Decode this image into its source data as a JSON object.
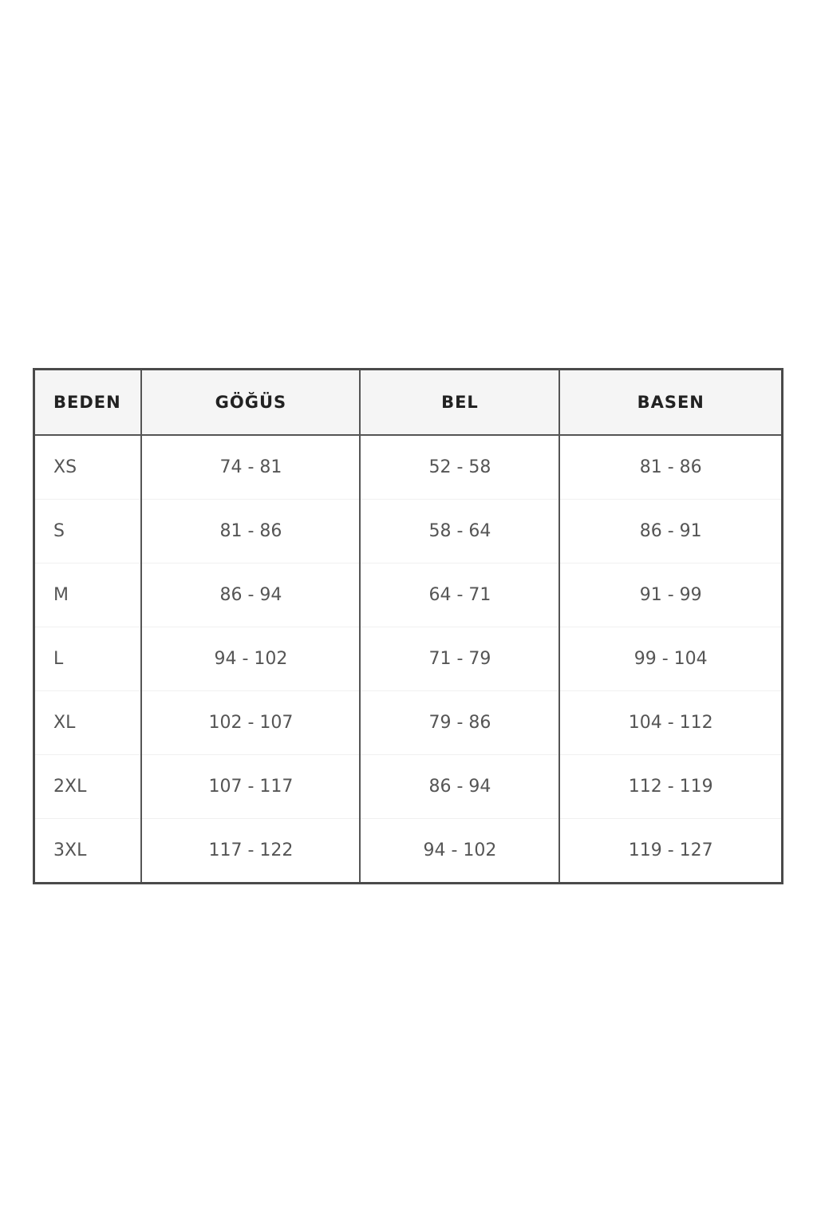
{
  "size_table": {
    "headers": [
      "BEDEN",
      "GÖĞÜS",
      "BEL",
      "BASEN"
    ],
    "rows": [
      [
        "XS",
        "74 - 81",
        "52 - 58",
        "81 - 86"
      ],
      [
        "S",
        "81 - 86",
        "58 - 64",
        "86 - 91"
      ],
      [
        "M",
        "86 - 94",
        "64 - 71",
        "91 - 99"
      ],
      [
        "L",
        "94 - 102",
        "71 - 79",
        "99 - 104"
      ],
      [
        "XL",
        "102 - 107",
        "79 - 86",
        "104 - 112"
      ],
      [
        "2XL",
        "107 - 117",
        "86 - 94",
        "112 - 119"
      ],
      [
        "3XL",
        "117 - 122",
        "94 - 102",
        "119 - 127"
      ]
    ]
  }
}
